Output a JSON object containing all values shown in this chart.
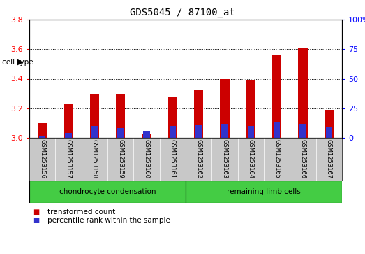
{
  "title": "GDS5045 / 87100_at",
  "samples": [
    "GSM1253156",
    "GSM1253157",
    "GSM1253158",
    "GSM1253159",
    "GSM1253160",
    "GSM1253161",
    "GSM1253162",
    "GSM1253163",
    "GSM1253164",
    "GSM1253165",
    "GSM1253166",
    "GSM1253167"
  ],
  "transformed_count": [
    3.1,
    3.23,
    3.3,
    3.3,
    3.03,
    3.28,
    3.32,
    3.4,
    3.39,
    3.56,
    3.61,
    3.19
  ],
  "percentile_rank": [
    2.0,
    4.0,
    10.0,
    8.0,
    6.0,
    10.0,
    11.0,
    12.0,
    10.0,
    13.0,
    12.0,
    9.0
  ],
  "ylim_left": [
    3.0,
    3.8
  ],
  "ylim_right": [
    0,
    100
  ],
  "yticks_left": [
    3.0,
    3.2,
    3.4,
    3.6,
    3.8
  ],
  "yticks_right": [
    0,
    25,
    50,
    75,
    100
  ],
  "bar_color_red": "#cc0000",
  "bar_color_blue": "#3333cc",
  "cell_type_groups": [
    {
      "label": "chondrocyte condensation",
      "n": 6,
      "color": "#44cc44"
    },
    {
      "label": "remaining limb cells",
      "n": 6,
      "color": "#44cc44"
    }
  ],
  "cell_type_label": "cell type",
  "legend_items": [
    {
      "label": "transformed count",
      "color": "#cc0000"
    },
    {
      "label": "percentile rank within the sample",
      "color": "#3333cc"
    }
  ],
  "grid_color": "#000000",
  "xlabels_bg": "#c8c8c8",
  "plot_bg_color": "#ffffff",
  "bar_width": 0.35,
  "blue_bar_width": 0.25
}
